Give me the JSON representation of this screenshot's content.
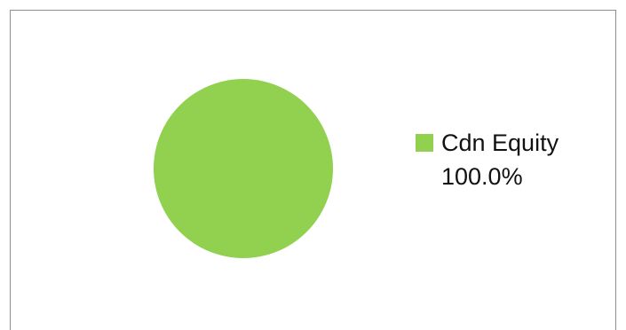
{
  "chart_data": {
    "type": "pie",
    "title": "",
    "slices": [
      {
        "label": "Cdn Equity",
        "value": 100.0,
        "display_value": "100.0%",
        "color": "#92d050"
      }
    ],
    "legend": {
      "position": "right"
    }
  }
}
